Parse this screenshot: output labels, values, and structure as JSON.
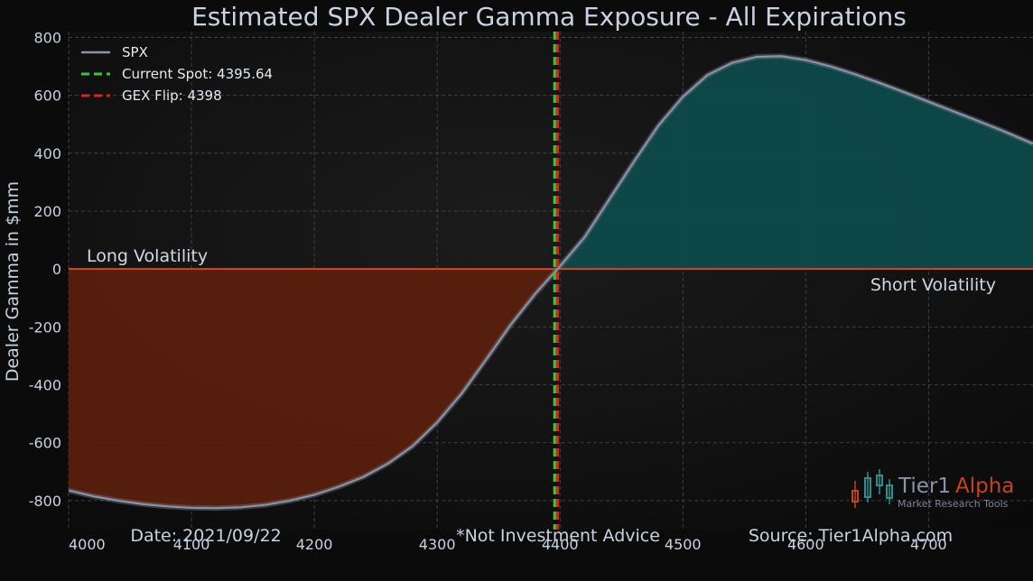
{
  "chart_data": {
    "type": "area",
    "title": "Estimated SPX Dealer Gamma Exposure - All Expirations",
    "xlabel": "",
    "ylabel": "Dealer Gamma in $mm",
    "xlim": [
      4000,
      4785
    ],
    "ylim": [
      -900,
      820
    ],
    "x_ticks": [
      4000,
      4100,
      4200,
      4300,
      4400,
      4500,
      4600,
      4700
    ],
    "y_ticks": [
      -800,
      -600,
      -400,
      -200,
      0,
      200,
      400,
      600,
      800
    ],
    "grid": true,
    "legend_position": "top-left",
    "series": [
      {
        "name": "SPX",
        "color": "#8a93a6",
        "x": [
          4000,
          4020,
          4040,
          4060,
          4080,
          4100,
          4120,
          4140,
          4160,
          4180,
          4200,
          4220,
          4240,
          4260,
          4280,
          4300,
          4320,
          4340,
          4360,
          4380,
          4398,
          4420,
          4440,
          4460,
          4480,
          4500,
          4520,
          4540,
          4560,
          4580,
          4600,
          4620,
          4640,
          4660,
          4680,
          4700,
          4720,
          4740,
          4760,
          4785
        ],
        "y": [
          -765,
          -785,
          -800,
          -812,
          -820,
          -825,
          -826,
          -823,
          -815,
          -800,
          -780,
          -752,
          -718,
          -672,
          -612,
          -530,
          -430,
          -312,
          -192,
          -85,
          0,
          110,
          240,
          370,
          495,
          595,
          670,
          712,
          733,
          735,
          722,
          700,
          673,
          643,
          611,
          578,
          545,
          512,
          478,
          433
        ]
      }
    ],
    "reference_lines": [
      {
        "name": "Current Spot: 4395.64",
        "x": 4395.64,
        "color": "#3cc43a"
      },
      {
        "name": "GEX Flip: 4398",
        "x": 4398,
        "color": "#e0201a"
      }
    ],
    "fill_colors": {
      "negative": "#5a1f0c",
      "positive": "#0e4a4a",
      "zero_line": "#d9461e"
    },
    "annotations": {
      "long_volatility": "Long Volatility",
      "short_volatility": "Short Volatility"
    }
  },
  "footer": {
    "date": "Date: 2021/09/22",
    "disclaimer": "*Not Investment Advice",
    "source": "Source: Tier1Alpha.com"
  },
  "logo": {
    "brand_part1": "Tier1",
    "brand_part2": "Alpha",
    "tagline": "Market  Research Tools"
  }
}
